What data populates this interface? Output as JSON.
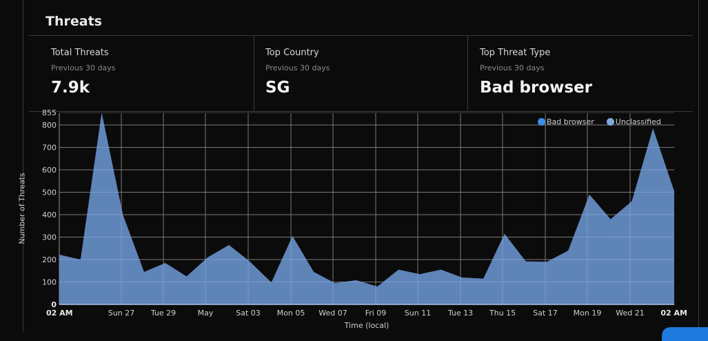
{
  "header": {
    "title": "Threats"
  },
  "stats": [
    {
      "label": "Total Threats",
      "sublabel": "Previous 30 days",
      "value": "7.9k"
    },
    {
      "label": "Top Country",
      "sublabel": "Previous 30 days",
      "value": "SG"
    },
    {
      "label": "Top Threat Type",
      "sublabel": "Previous 30 days",
      "value": "Bad browser"
    }
  ],
  "legend": [
    {
      "label": "Bad browser",
      "color": "#3b8eea"
    },
    {
      "label": "Unclassified",
      "color": "#7ea9e0"
    }
  ],
  "colors": {
    "area": "#5f84b8",
    "grid": "#7a7a7a",
    "background": "#0b0b0b"
  },
  "chart_data": {
    "type": "area",
    "title": "",
    "xlabel": "Time (local)",
    "ylabel": "Number of Threats",
    "ylim": [
      0,
      855
    ],
    "y_ticks": [
      0,
      100,
      200,
      300,
      400,
      500,
      600,
      700,
      800,
      855
    ],
    "x_tick_labels": [
      "02 AM",
      "Sun 27",
      "Tue 29",
      "May",
      "Sat 03",
      "Mon 05",
      "Wed 07",
      "Fri 09",
      "Sun 11",
      "Tue 13",
      "Thu 15",
      "Sat 17",
      "Mon 19",
      "Wed 21",
      "02 AM"
    ],
    "grid": true,
    "legend_position": "top-right",
    "series": [
      {
        "name": "Unclassified",
        "values": [
          222,
          200,
          855,
          400,
          145,
          185,
          125,
          210,
          265,
          190,
          98,
          305,
          145,
          95,
          108,
          80,
          155,
          135,
          155,
          120,
          115,
          315,
          192,
          190,
          240,
          490,
          380,
          460,
          785,
          505
        ]
      },
      {
        "name": "Bad browser",
        "values": [
          5,
          3,
          0,
          0,
          2,
          0,
          2,
          0,
          0,
          0,
          0,
          0,
          3,
          6,
          2,
          0,
          0,
          0,
          0,
          0,
          0,
          4,
          2,
          0,
          0,
          0,
          0,
          0,
          0,
          0
        ]
      }
    ]
  }
}
